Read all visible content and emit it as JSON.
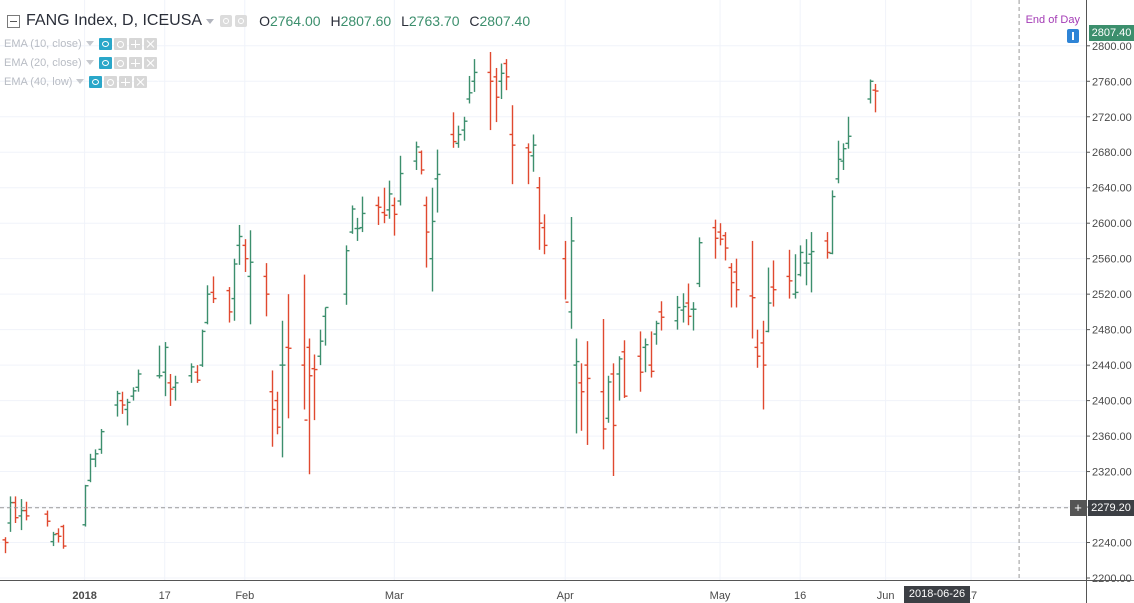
{
  "legend": {
    "symbol_title": "FANG Index, D, ICEUSA",
    "ohlc": {
      "open_label": "O",
      "open": "2764.00",
      "high_label": "H",
      "high": "2807.60",
      "low_label": "L",
      "low": "2763.70",
      "close_label": "C",
      "close": "2807.40"
    },
    "studies": [
      {
        "label": "EMA (10, close)"
      },
      {
        "label": "EMA (20, close)"
      },
      {
        "label": "EMA (40, low)"
      }
    ]
  },
  "end_of_day_label": "End of Day",
  "last_price_label": "2807.40",
  "crosshair_price_label": "2279.20",
  "crosshair_date_label": "2018-06-26",
  "colors": {
    "up": "#3c8f6d",
    "down": "#e0492f",
    "background": "#ffffff",
    "grid": "#f0f3fa"
  },
  "chart_data": {
    "type": "ohlc",
    "ylim": [
      2200,
      2810
    ],
    "y_ticks": [
      2200,
      2240,
      2280,
      2320,
      2360,
      2400,
      2440,
      2480,
      2520,
      2560,
      2600,
      2640,
      2680,
      2720,
      2760,
      2800
    ],
    "y_tick_labels": [
      "2200.00",
      "2240.00",
      "2280.00",
      "2320.00",
      "2360.00",
      "2400.00",
      "2440.00",
      "2480.00",
      "2520.00",
      "2560.00",
      "2600.00",
      "2640.00",
      "2680.00",
      "2720.00",
      "2760.00",
      "2800.00"
    ],
    "x_tick_labels": [
      {
        "label": "2018",
        "date": "2018-01-02",
        "bold": true
      },
      {
        "label": "17",
        "date": "2018-01-17"
      },
      {
        "label": "Feb",
        "date": "2018-02-01"
      },
      {
        "label": "Mar",
        "date": "2018-03-01"
      },
      {
        "label": "Apr",
        "date": "2018-04-02"
      },
      {
        "label": "May",
        "date": "2018-05-01"
      },
      {
        "label": "16",
        "date": "2018-05-16"
      },
      {
        "label": "Jun",
        "date": "2018-06-01"
      },
      {
        "label": "17",
        "date": "2018-06-17"
      }
    ],
    "crosshair": {
      "date": "2018-06-26",
      "price": 2279.2
    },
    "bars": [
      [
        "2017-12-18",
        2243,
        2246,
        2228,
        2240
      ],
      [
        "2017-12-19",
        2262,
        2292,
        2252,
        2285
      ],
      [
        "2017-12-20",
        2285,
        2292,
        2262,
        2268
      ],
      [
        "2017-12-21",
        2270,
        2289,
        2254,
        2276
      ],
      [
        "2017-12-22",
        2276,
        2286,
        2265,
        2270
      ],
      [
        "2017-12-26",
        2272,
        2276,
        2258,
        2264
      ],
      [
        "2017-12-27",
        2241,
        2252,
        2236,
        2249
      ],
      [
        "2017-12-28",
        2250,
        2256,
        2240,
        2247
      ],
      [
        "2017-12-29",
        2258,
        2260,
        2233,
        2236
      ],
      [
        "2018-01-02",
        2260,
        2305,
        2258,
        2304
      ],
      [
        "2018-01-03",
        2310,
        2340,
        2308,
        2334
      ],
      [
        "2018-01-04",
        2334,
        2345,
        2325,
        2340
      ],
      [
        "2018-01-05",
        2345,
        2368,
        2340,
        2365
      ],
      [
        "2018-01-08",
        2395,
        2411,
        2382,
        2408
      ],
      [
        "2018-01-09",
        2400,
        2410,
        2385,
        2395
      ],
      [
        "2018-01-10",
        2390,
        2402,
        2372,
        2398
      ],
      [
        "2018-01-11",
        2405,
        2415,
        2400,
        2411
      ],
      [
        "2018-01-12",
        2415,
        2435,
        2410,
        2430
      ],
      [
        "2018-01-16",
        2428,
        2462,
        2425,
        2428
      ],
      [
        "2018-01-17",
        2432,
        2466,
        2405,
        2460
      ],
      [
        "2018-01-18",
        2420,
        2430,
        2394,
        2413
      ],
      [
        "2018-01-19",
        2415,
        2428,
        2400,
        2420
      ],
      [
        "2018-01-22",
        2428,
        2442,
        2420,
        2438
      ],
      [
        "2018-01-23",
        2432,
        2440,
        2420,
        2423
      ],
      [
        "2018-01-24",
        2440,
        2480,
        2438,
        2478
      ],
      [
        "2018-01-25",
        2488,
        2530,
        2486,
        2520
      ],
      [
        "2018-01-26",
        2522,
        2540,
        2510,
        2515
      ],
      [
        "2018-01-29",
        2524,
        2528,
        2488,
        2500
      ],
      [
        "2018-01-30",
        2515,
        2560,
        2490,
        2554
      ],
      [
        "2018-01-31",
        2575,
        2598,
        2553,
        2585
      ],
      [
        "2018-02-01",
        2575,
        2582,
        2545,
        2560
      ],
      [
        "2018-02-02",
        2540,
        2592,
        2486,
        2556
      ],
      [
        "2018-02-05",
        2540,
        2555,
        2495,
        2520
      ],
      [
        "2018-02-06",
        2410,
        2434,
        2348,
        2390
      ],
      [
        "2018-02-07",
        2400,
        2410,
        2362,
        2370
      ],
      [
        "2018-02-08",
        2440,
        2490,
        2336,
        2440
      ],
      [
        "2018-02-09",
        2460,
        2520,
        2380,
        2459
      ],
      [
        "2018-02-12",
        2440,
        2542,
        2390,
        2378
      ],
      [
        "2018-02-13",
        2460,
        2470,
        2317,
        2428
      ],
      [
        "2018-02-14",
        2436,
        2452,
        2378,
        2435
      ],
      [
        "2018-02-15",
        2450,
        2480,
        2440,
        2467
      ],
      [
        "2018-02-16",
        2495,
        2505,
        2462,
        2505
      ],
      [
        "2018-02-20",
        2520,
        2575,
        2508,
        2569
      ],
      [
        "2018-02-21",
        2590,
        2620,
        2588,
        2616
      ],
      [
        "2018-02-22",
        2594,
        2606,
        2580,
        2594
      ],
      [
        "2018-02-23",
        2595,
        2630,
        2590,
        2611
      ],
      [
        "2018-02-26",
        2620,
        2630,
        2598,
        2618
      ],
      [
        "2018-02-27",
        2612,
        2640,
        2600,
        2609
      ],
      [
        "2018-02-28",
        2615,
        2648,
        2605,
        2633
      ],
      [
        "2018-03-01",
        2620,
        2629,
        2586,
        2610
      ],
      [
        "2018-03-02",
        2625,
        2676,
        2620,
        2656
      ],
      [
        "2018-03-05",
        2670,
        2692,
        2660,
        2686
      ],
      [
        "2018-03-06",
        2680,
        2682,
        2655,
        2660
      ],
      [
        "2018-03-07",
        2620,
        2630,
        2550,
        2590
      ],
      [
        "2018-03-08",
        2560,
        2640,
        2523,
        2602
      ],
      [
        "2018-03-09",
        2650,
        2683,
        2612,
        2655
      ],
      [
        "2018-03-12",
        2700,
        2725,
        2685,
        2692
      ],
      [
        "2018-03-13",
        2690,
        2710,
        2685,
        2700
      ],
      [
        "2018-03-14",
        2705,
        2720,
        2693,
        2715
      ],
      [
        "2018-03-15",
        2740,
        2766,
        2735,
        2747
      ],
      [
        "2018-03-16",
        2760,
        2785,
        2748,
        2770
      ],
      [
        "2018-03-19",
        2770,
        2793,
        2705,
        2760
      ],
      [
        "2018-03-20",
        2765,
        2775,
        2714,
        2742
      ],
      [
        "2018-03-21",
        2760,
        2780,
        2740,
        2769
      ],
      [
        "2018-03-22",
        2780,
        2785,
        2750,
        2765
      ],
      [
        "2018-03-23",
        2700,
        2733,
        2644,
        2688
      ],
      [
        "2018-03-26",
        2685,
        2690,
        2644,
        2680
      ],
      [
        "2018-03-27",
        2676,
        2700,
        2658,
        2688
      ],
      [
        "2018-03-28",
        2640,
        2652,
        2570,
        2600
      ],
      [
        "2018-03-29",
        2595,
        2610,
        2565,
        2575
      ],
      [
        "2018-04-02",
        2560,
        2580,
        2514,
        2511
      ],
      [
        "2018-04-03",
        2500,
        2607,
        2481,
        2580
      ],
      [
        "2018-04-04",
        2440,
        2470,
        2363,
        2444
      ],
      [
        "2018-04-05",
        2420,
        2442,
        2366,
        2410
      ],
      [
        "2018-04-06",
        2440,
        2467,
        2350,
        2425
      ],
      [
        "2018-04-09",
        2410,
        2492,
        2345,
        2368
      ],
      [
        "2018-04-10",
        2380,
        2428,
        2375,
        2421
      ],
      [
        "2018-04-11",
        2430,
        2442,
        2315,
        2372
      ],
      [
        "2018-04-12",
        2430,
        2450,
        2400,
        2447
      ],
      [
        "2018-04-13",
        2455,
        2468,
        2403,
        2405
      ],
      [
        "2018-04-16",
        2450,
        2478,
        2410,
        2432
      ],
      [
        "2018-04-17",
        2460,
        2470,
        2432,
        2463
      ],
      [
        "2018-04-18",
        2440,
        2478,
        2426,
        2433
      ],
      [
        "2018-04-19",
        2475,
        2490,
        2463,
        2487
      ],
      [
        "2018-04-20",
        2500,
        2512,
        2479,
        2494
      ],
      [
        "2018-04-23",
        2490,
        2518,
        2480,
        2505
      ],
      [
        "2018-04-24",
        2502,
        2521,
        2488,
        2506
      ],
      [
        "2018-04-25",
        2510,
        2532,
        2485,
        2495
      ],
      [
        "2018-04-26",
        2503,
        2511,
        2479,
        2503
      ],
      [
        "2018-04-27",
        2532,
        2584,
        2528,
        2578
      ],
      [
        "2018-04-30",
        2595,
        2604,
        2560,
        2583
      ],
      [
        "2018-05-01",
        2590,
        2600,
        2575,
        2582
      ],
      [
        "2018-05-02",
        2586,
        2590,
        2558,
        2572
      ],
      [
        "2018-05-03",
        2550,
        2555,
        2505,
        2533
      ],
      [
        "2018-05-04",
        2545,
        2560,
        2505,
        2525
      ],
      [
        "2018-05-07",
        2518,
        2580,
        2470,
        2516
      ],
      [
        "2018-05-08",
        2460,
        2480,
        2437,
        2450
      ],
      [
        "2018-05-09",
        2465,
        2490,
        2390,
        2440
      ],
      [
        "2018-05-10",
        2478,
        2550,
        2477,
        2510
      ],
      [
        "2018-05-11",
        2528,
        2558,
        2506,
        2525
      ],
      [
        "2018-05-14",
        2540,
        2570,
        2515,
        2535
      ],
      [
        "2018-05-15",
        2520,
        2565,
        2515,
        2522
      ],
      [
        "2018-05-16",
        2542,
        2575,
        2540,
        2567
      ],
      [
        "2018-05-17",
        2555,
        2582,
        2530,
        2555
      ],
      [
        "2018-05-18",
        2565,
        2590,
        2522,
        2568
      ],
      [
        "2018-05-21",
        2580,
        2590,
        2560,
        2567
      ],
      [
        "2018-05-22",
        2566,
        2637,
        2565,
        2630
      ],
      [
        "2018-05-23",
        2650,
        2693,
        2645,
        2672
      ],
      [
        "2018-05-24",
        2670,
        2690,
        2660,
        2684
      ],
      [
        "2018-05-25",
        2690,
        2720,
        2684,
        2698
      ],
      [
        "2018-05-29",
        2740,
        2762,
        2735,
        2760
      ],
      [
        "2018-05-30",
        2750,
        2757,
        2725,
        2749
      ]
    ]
  }
}
